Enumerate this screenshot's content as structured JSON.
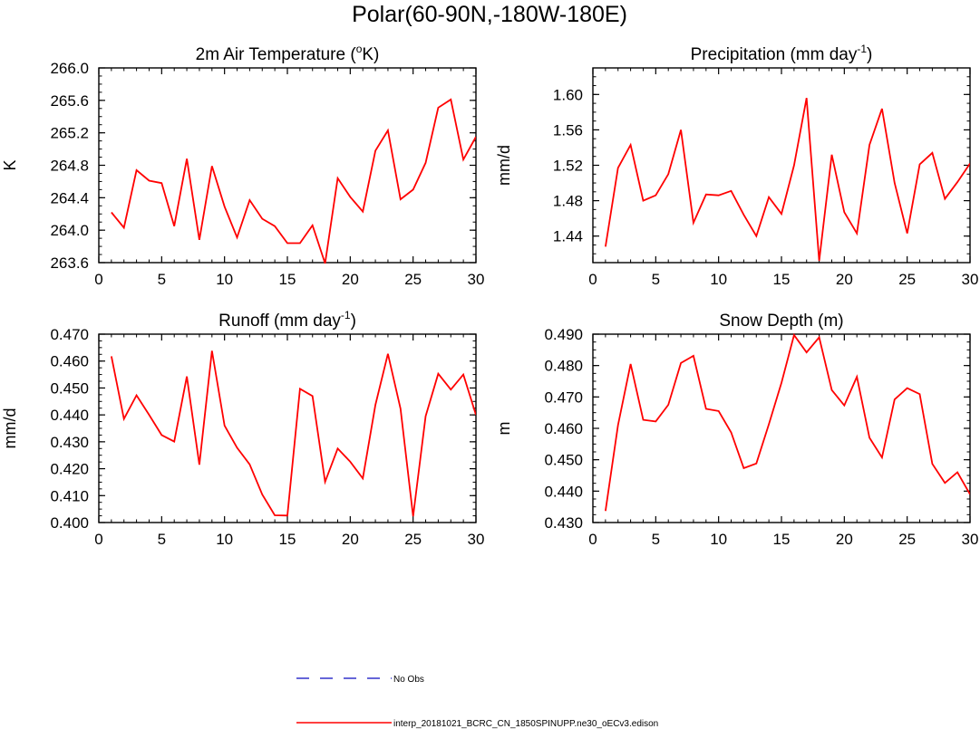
{
  "figure": {
    "main_title": "Polar(60-90N,-180W-180E)"
  },
  "legend": [
    {
      "label": "No Obs",
      "color": "#3333cc",
      "style": "dashed"
    },
    {
      "label": "interp_20181021_BCRC_CN_1850SPINUPP.ne30_oECv3.edison",
      "color": "#ff0000",
      "style": "solid"
    }
  ],
  "chart_data": [
    {
      "type": "line",
      "title": "2m Air Temperature (",
      "title_sup": "o",
      "title_suffix": "K)",
      "xlabel": "",
      "ylabel": "K",
      "xlim": [
        0,
        30
      ],
      "ylim": [
        263.6,
        266.0
      ],
      "xticks": [
        0,
        5,
        10,
        15,
        20,
        25,
        30
      ],
      "yticks": [
        263.6,
        264.0,
        264.4,
        264.8,
        265.2,
        265.6,
        266.0
      ],
      "ytick_labels": [
        "263.6",
        "264.0",
        "264.4",
        "264.8",
        "265.2",
        "265.6",
        "266.0"
      ],
      "series": [
        {
          "name": "interp_20181021_BCRC_CN_1850SPINUPP.ne30_oECv3.edison",
          "color": "#ff0000",
          "x": [
            1,
            2,
            3,
            4,
            5,
            6,
            7,
            8,
            9,
            10,
            11,
            12,
            13,
            14,
            15,
            16,
            17,
            18,
            19,
            20,
            21,
            22,
            23,
            24,
            25,
            26,
            27,
            28,
            29,
            30
          ],
          "values": [
            264.22,
            264.03,
            264.74,
            264.61,
            264.58,
            264.05,
            264.88,
            263.88,
            264.79,
            264.29,
            263.91,
            264.37,
            264.14,
            264.05,
            263.84,
            263.84,
            264.06,
            263.59,
            264.64,
            264.41,
            264.23,
            264.98,
            265.23,
            264.38,
            264.5,
            264.83,
            265.51,
            265.61,
            264.87,
            265.15
          ]
        }
      ]
    },
    {
      "type": "line",
      "title": "Precipitation (mm day",
      "title_sup": "-1",
      "title_suffix": ")",
      "xlabel": "",
      "ylabel": "mm/d",
      "xlim": [
        0,
        30
      ],
      "ylim": [
        1.41,
        1.63
      ],
      "xticks": [
        0,
        5,
        10,
        15,
        20,
        25,
        30
      ],
      "yticks": [
        1.44,
        1.48,
        1.52,
        1.56,
        1.6
      ],
      "ytick_labels": [
        "1.44",
        "1.48",
        "1.52",
        "1.56",
        "1.60"
      ],
      "series": [
        {
          "name": "interp_20181021_BCRC_CN_1850SPINUPP.ne30_oECv3.edison",
          "color": "#ff0000",
          "x": [
            1,
            2,
            3,
            4,
            5,
            6,
            7,
            8,
            9,
            10,
            11,
            12,
            13,
            14,
            15,
            16,
            17,
            18,
            19,
            20,
            21,
            22,
            23,
            24,
            25,
            26,
            27,
            28,
            29,
            30
          ],
          "values": [
            1.428,
            1.517,
            1.543,
            1.48,
            1.486,
            1.51,
            1.56,
            1.455,
            1.487,
            1.486,
            1.491,
            1.464,
            1.44,
            1.484,
            1.465,
            1.52,
            1.596,
            1.412,
            1.532,
            1.467,
            1.443,
            1.543,
            1.584,
            1.5,
            1.443,
            1.521,
            1.534,
            1.482,
            1.501,
            1.522
          ]
        }
      ]
    },
    {
      "type": "line",
      "title": "Runoff (mm day",
      "title_sup": "-1",
      "title_suffix": ")",
      "xlabel": "",
      "ylabel": "mm/d",
      "xlim": [
        0,
        30
      ],
      "ylim": [
        0.4,
        0.47
      ],
      "xticks": [
        0,
        5,
        10,
        15,
        20,
        25,
        30
      ],
      "yticks": [
        0.4,
        0.41,
        0.42,
        0.43,
        0.44,
        0.45,
        0.46,
        0.47
      ],
      "ytick_labels": [
        "0.400",
        "0.410",
        "0.420",
        "0.430",
        "0.440",
        "0.450",
        "0.460",
        "0.470"
      ],
      "series": [
        {
          "name": "interp_20181021_BCRC_CN_1850SPINUPP.ne30_oECv3.edison",
          "color": "#ff0000",
          "x": [
            1,
            2,
            3,
            4,
            5,
            6,
            7,
            8,
            9,
            10,
            11,
            12,
            13,
            14,
            15,
            16,
            17,
            18,
            19,
            20,
            21,
            22,
            23,
            24,
            25,
            26,
            27,
            28,
            29,
            30
          ],
          "values": [
            0.4618,
            0.4385,
            0.4473,
            0.44,
            0.4325,
            0.4301,
            0.4543,
            0.4215,
            0.4638,
            0.436,
            0.4278,
            0.4216,
            0.4104,
            0.4027,
            0.4026,
            0.4497,
            0.447,
            0.4151,
            0.4275,
            0.4226,
            0.4164,
            0.4437,
            0.4627,
            0.4423,
            0.4023,
            0.4395,
            0.4553,
            0.4494,
            0.455,
            0.44
          ]
        }
      ]
    },
    {
      "type": "line",
      "title": "Snow Depth (m)",
      "title_sup": "",
      "title_suffix": "",
      "xlabel": "",
      "ylabel": "m",
      "xlim": [
        0,
        30
      ],
      "ylim": [
        0.43,
        0.49
      ],
      "xticks": [
        0,
        5,
        10,
        15,
        20,
        25,
        30
      ],
      "yticks": [
        0.43,
        0.44,
        0.45,
        0.46,
        0.47,
        0.48,
        0.49
      ],
      "ytick_labels": [
        "0.430",
        "0.440",
        "0.450",
        "0.460",
        "0.470",
        "0.480",
        "0.490"
      ],
      "series": [
        {
          "name": "interp_20181021_BCRC_CN_1850SPINUPP.ne30_oECv3.edison",
          "color": "#ff0000",
          "x": [
            1,
            2,
            3,
            4,
            5,
            6,
            7,
            8,
            9,
            10,
            11,
            12,
            13,
            14,
            15,
            16,
            17,
            18,
            19,
            20,
            21,
            22,
            23,
            24,
            25,
            26,
            27,
            28,
            29,
            30
          ],
          "values": [
            0.4337,
            0.461,
            0.4805,
            0.4627,
            0.4622,
            0.4675,
            0.4808,
            0.4831,
            0.4662,
            0.4655,
            0.4587,
            0.4473,
            0.4488,
            0.4613,
            0.4745,
            0.4897,
            0.4842,
            0.489,
            0.4722,
            0.4673,
            0.4764,
            0.457,
            0.4507,
            0.4692,
            0.4728,
            0.4709,
            0.4487,
            0.4426,
            0.446,
            0.439
          ]
        }
      ]
    }
  ]
}
